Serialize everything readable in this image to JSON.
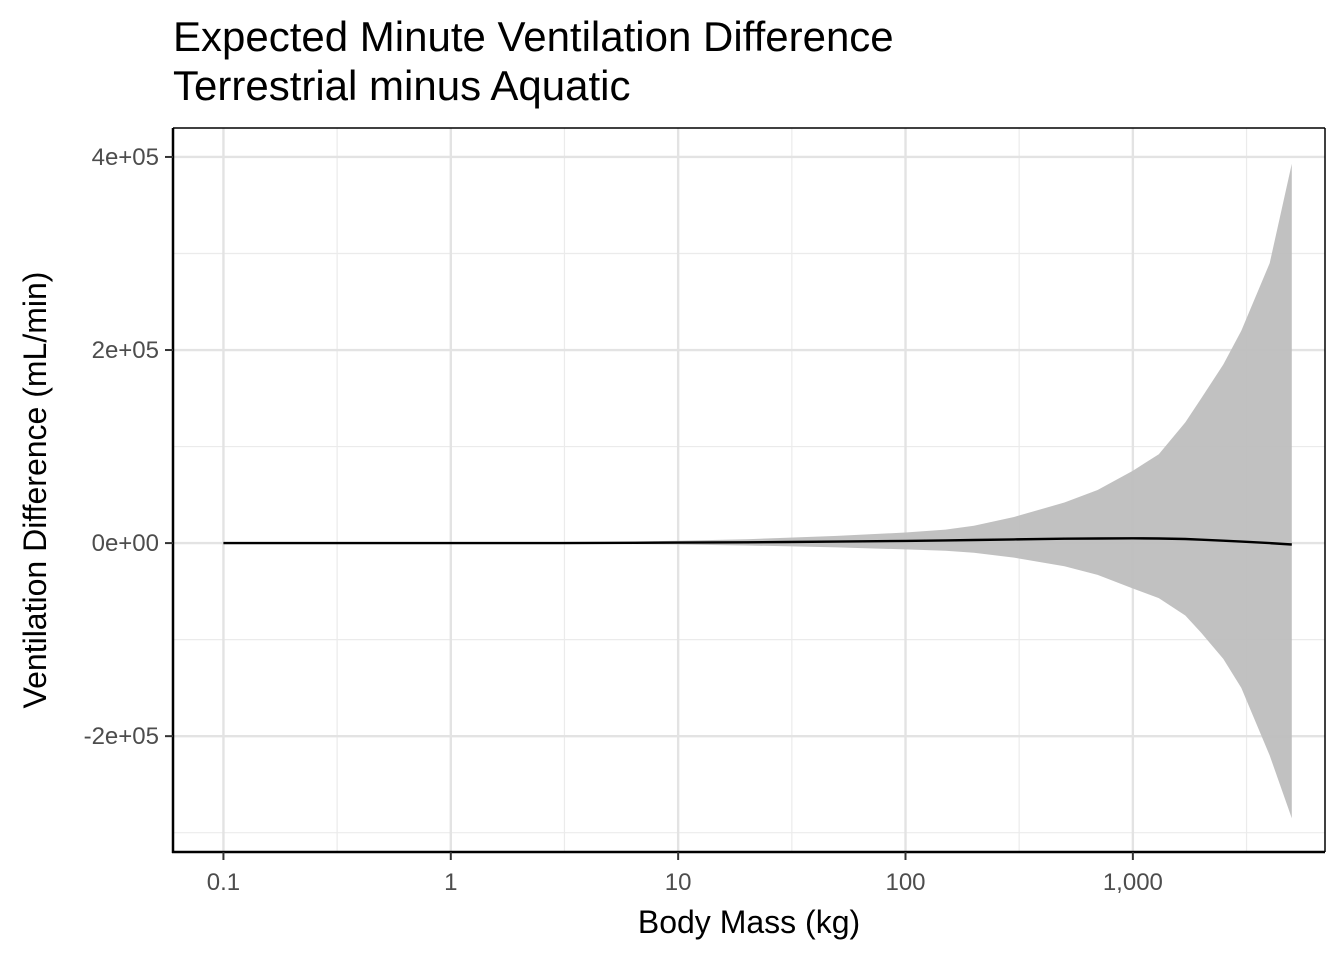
{
  "title_lines": [
    "Expected Minute Ventilation Difference",
    "Terrestrial minus Aquatic"
  ],
  "chart_data": {
    "type": "line",
    "title": "Expected Minute Ventilation Difference\nTerrestrial minus Aquatic",
    "xlabel": "Body Mass (kg)",
    "ylabel": "Ventilation Difference (mL/min)",
    "x_scale": "log10",
    "xlim": [
      0.06,
      7000
    ],
    "ylim": [
      -320000,
      430000
    ],
    "x_ticks": [
      0.1,
      1,
      10,
      100,
      1000
    ],
    "x_tick_labels": [
      "0.1",
      "1",
      "10",
      "100",
      "1,000"
    ],
    "y_ticks": [
      -200000,
      0,
      200000,
      400000
    ],
    "y_tick_labels": [
      "-2e+05",
      "0e+00",
      "2e+05",
      "4e+05"
    ],
    "grid": true,
    "line_color": "#000000",
    "ribbon_color": "#bebebe",
    "series": [
      {
        "x": [
          0.1,
          0.3,
          1,
          3,
          10,
          20,
          30,
          50,
          100,
          150,
          200,
          300,
          500,
          700,
          1000,
          1300,
          1700,
          2000,
          2500,
          3000,
          4000,
          5000
        ],
        "y": [
          0,
          0,
          0,
          0,
          500,
          800,
          1100,
          1500,
          2300,
          2800,
          3200,
          3800,
          4500,
          4800,
          5000,
          4800,
          4200,
          3500,
          2500,
          1500,
          0,
          -1500
        ],
        "lower": [
          0,
          0,
          0,
          -200,
          -1500,
          -2500,
          -3300,
          -4500,
          -6500,
          -8000,
          -10000,
          -15000,
          -24000,
          -33000,
          -47000,
          -57000,
          -75000,
          -93000,
          -120000,
          -150000,
          -220000,
          -285000
        ],
        "upper": [
          0,
          0,
          0,
          300,
          2500,
          4000,
          5500,
          7500,
          11000,
          14000,
          18000,
          27000,
          42000,
          55000,
          75000,
          92000,
          125000,
          150000,
          185000,
          220000,
          290000,
          393000
        ]
      }
    ]
  }
}
